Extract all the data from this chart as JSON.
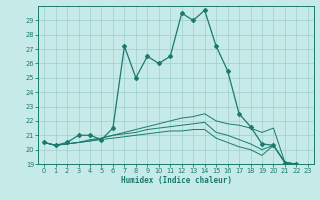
{
  "xlabel": "Humidex (Indice chaleur)",
  "xlim": [
    -0.5,
    23.5
  ],
  "ylim": [
    19,
    30
  ],
  "yticks": [
    19,
    20,
    21,
    22,
    23,
    24,
    25,
    26,
    27,
    28,
    29
  ],
  "xticks": [
    0,
    1,
    2,
    3,
    4,
    5,
    6,
    7,
    8,
    9,
    10,
    11,
    12,
    13,
    14,
    15,
    16,
    17,
    18,
    19,
    20,
    21,
    22,
    23
  ],
  "bg_color": "#c6eae8",
  "line_color": "#1a7a6e",
  "grid_color": "#9ecece",
  "series_main": [
    20.5,
    20.3,
    20.5,
    21.0,
    21.0,
    20.7,
    21.5,
    27.2,
    25.0,
    26.5,
    26.0,
    26.5,
    29.5,
    29.0,
    29.7,
    27.2,
    25.5,
    22.5,
    21.6,
    20.4,
    20.3,
    19.1,
    19.0
  ],
  "series_flat": [
    [
      20.5,
      20.3,
      20.4,
      20.5,
      20.7,
      20.8,
      21.0,
      21.2,
      21.4,
      21.6,
      21.8,
      22.0,
      22.2,
      22.3,
      22.5,
      22.0,
      21.8,
      21.7,
      21.5,
      21.2,
      21.5,
      19.1,
      19.0
    ],
    [
      20.5,
      20.3,
      20.4,
      20.5,
      20.6,
      20.8,
      21.0,
      21.1,
      21.2,
      21.4,
      21.5,
      21.6,
      21.7,
      21.8,
      21.9,
      21.2,
      21.0,
      20.7,
      20.4,
      20.0,
      20.3,
      19.1,
      19.0
    ],
    [
      20.5,
      20.3,
      20.4,
      20.5,
      20.6,
      20.7,
      20.8,
      20.9,
      21.0,
      21.1,
      21.2,
      21.3,
      21.3,
      21.4,
      21.4,
      20.8,
      20.5,
      20.2,
      20.0,
      19.6,
      20.3,
      19.1,
      19.0
    ]
  ]
}
